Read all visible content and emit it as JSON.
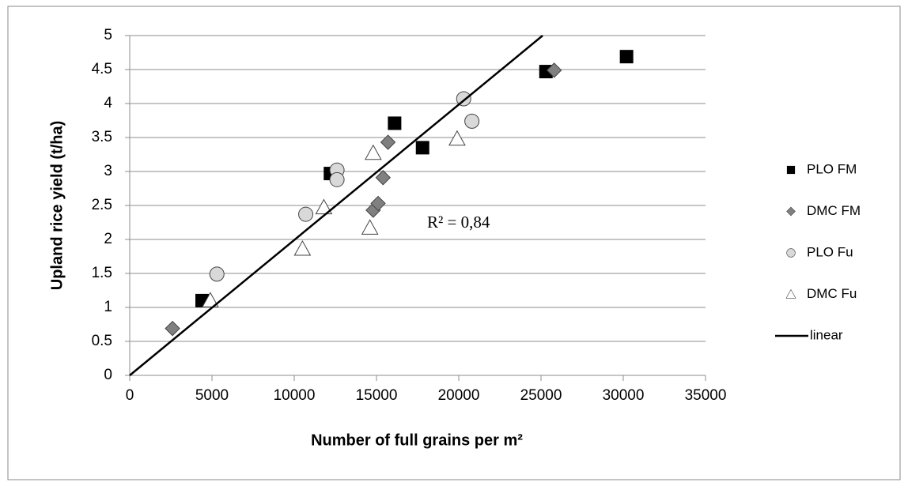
{
  "chart_data": {
    "type": "scatter",
    "x_label": "Number of full grains per m²",
    "y_label": "Upland rice yield (t/ha)",
    "annotation": "R² = 0,84",
    "xlim": [
      0,
      35000
    ],
    "xticks": [
      0,
      5000,
      10000,
      15000,
      20000,
      25000,
      30000,
      35000
    ],
    "ylim": [
      0,
      5
    ],
    "yticks": [
      0,
      0.5,
      1,
      1.5,
      2,
      2.5,
      3,
      3.5,
      4,
      4.5,
      5
    ],
    "grid": true,
    "legend": "right",
    "series": [
      {
        "name": "PLO FM",
        "marker": "square",
        "color": "#000000",
        "x": [
          4400,
          12200,
          16100,
          17800,
          25300,
          30200
        ],
        "values": [
          1.1,
          2.97,
          3.71,
          3.35,
          4.47,
          4.69
        ]
      },
      {
        "name": "DMC FM",
        "marker": "diamond",
        "color": "#808080",
        "x": [
          2600,
          14800,
          15100,
          15400,
          15700,
          25800
        ],
        "values": [
          0.69,
          2.43,
          2.53,
          2.91,
          3.43,
          4.49
        ]
      },
      {
        "name": "PLO Fu",
        "marker": "circle",
        "color": "#d9d9d9",
        "x": [
          5300,
          10700,
          12600,
          12600,
          20300,
          20800
        ],
        "values": [
          1.49,
          2.37,
          3.02,
          2.88,
          4.07,
          3.74
        ]
      },
      {
        "name": "DMC Fu",
        "marker": "triangle",
        "color": "#ffffff",
        "x": [
          4900,
          10500,
          11800,
          14600,
          14800,
          19900
        ],
        "values": [
          1.1,
          1.86,
          2.47,
          2.17,
          3.27,
          3.48
        ]
      },
      {
        "name": "linear",
        "marker": "line",
        "color": "#000000",
        "x": [
          0,
          25100
        ],
        "values": [
          0,
          5
        ]
      }
    ]
  }
}
